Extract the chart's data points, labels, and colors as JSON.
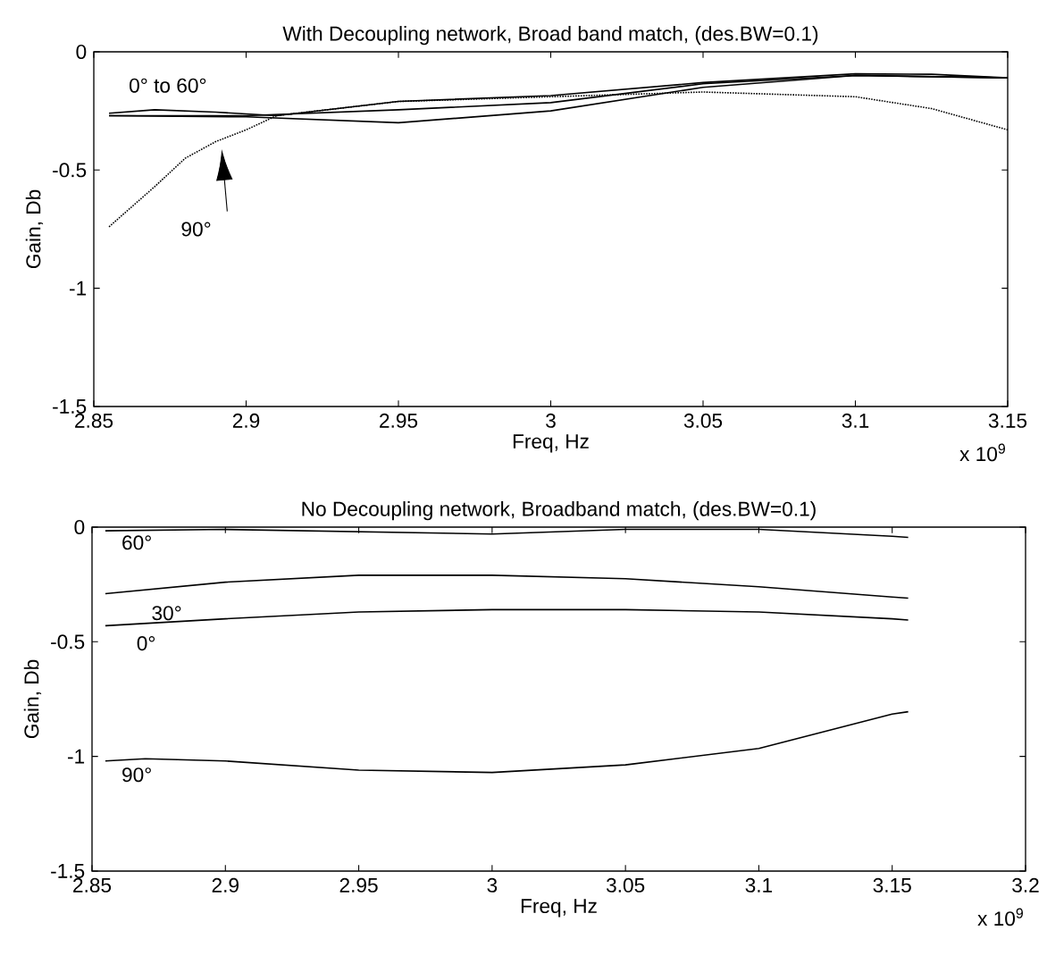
{
  "chart_data": [
    {
      "type": "line",
      "title": "With Decoupling network, Broad band match, (des.BW=0.1)",
      "xlabel": "Freq, Hz",
      "ylabel": "Gain, Db",
      "xlim": [
        2.85,
        3.15
      ],
      "xticks": [
        2.85,
        2.9,
        2.95,
        3,
        3.05,
        3.1,
        3.15
      ],
      "ylim": [
        -1.5,
        0
      ],
      "yticks": [
        -1.5,
        -1,
        -0.5,
        0
      ],
      "series": [
        {
          "color": "#000000",
          "line_style": "solid",
          "x": [
            2.855,
            2.87,
            2.89,
            2.91,
            2.95,
            3.0,
            3.05,
            3.1,
            3.125,
            3.15
          ],
          "values": [
            -0.26,
            -0.245,
            -0.255,
            -0.27,
            -0.21,
            -0.185,
            -0.13,
            -0.093,
            -0.095,
            -0.11
          ]
        },
        {
          "color": "#000000",
          "line_style": "solid",
          "x": [
            2.855,
            2.9,
            2.95,
            3.0,
            3.05,
            3.1,
            3.15
          ],
          "values": [
            -0.27,
            -0.275,
            -0.3,
            -0.25,
            -0.15,
            -0.1,
            -0.11
          ]
        },
        {
          "color": "#000000",
          "line_style": "solid",
          "x": [
            2.855,
            2.9,
            2.95,
            3.0,
            3.05,
            3.1,
            3.15
          ],
          "values": [
            -0.27,
            -0.27,
            -0.245,
            -0.215,
            -0.135,
            -0.1,
            -0.11
          ]
        },
        {
          "color": "#000000",
          "line_style": "dotted",
          "x": [
            2.855,
            2.87,
            2.88,
            2.89,
            2.9,
            2.91,
            2.95,
            3.0,
            3.05,
            3.1,
            3.125,
            3.15
          ],
          "values": [
            -0.74,
            -0.57,
            -0.45,
            -0.38,
            -0.33,
            -0.27,
            -0.21,
            -0.19,
            -0.17,
            -0.19,
            -0.24,
            -0.33
          ]
        }
      ],
      "annotations": [
        "0° to 60°",
        "90°",
        "x 10$^{9}$"
      ]
    },
    {
      "type": "line",
      "title": "No Decoupling network, Broadband match, (des.BW=0.1)",
      "xlabel": "Freq, Hz",
      "ylabel": "Gain, Db",
      "xlim": [
        2.85,
        3.2
      ],
      "xticks": [
        2.85,
        2.9,
        2.95,
        3,
        3.05,
        3.1,
        3.15,
        3.2
      ],
      "ylim": [
        -1.5,
        0
      ],
      "yticks": [
        -1.5,
        -1,
        -0.5,
        0
      ],
      "series": [
        {
          "color": "#000000",
          "x": [
            2.855,
            2.9,
            2.95,
            3.0,
            3.05,
            3.1,
            3.15,
            3.156
          ],
          "values": [
            -0.016,
            -0.01,
            -0.02,
            -0.03,
            -0.01,
            -0.01,
            -0.04,
            -0.045
          ]
        },
        {
          "color": "#000000",
          "x": [
            2.855,
            2.9,
            2.95,
            3.0,
            3.05,
            3.1,
            3.15,
            3.156
          ],
          "values": [
            -0.29,
            -0.24,
            -0.21,
            -0.21,
            -0.225,
            -0.26,
            -0.305,
            -0.31
          ]
        },
        {
          "color": "#000000",
          "x": [
            2.855,
            2.9,
            2.95,
            3.0,
            3.05,
            3.1,
            3.15,
            3.156
          ],
          "values": [
            -0.43,
            -0.4,
            -0.37,
            -0.36,
            -0.36,
            -0.37,
            -0.4,
            -0.405
          ]
        },
        {
          "color": "#000000",
          "x": [
            2.855,
            2.87,
            2.9,
            2.95,
            3.0,
            3.05,
            3.1,
            3.15,
            3.156
          ],
          "values": [
            -1.02,
            -1.01,
            -1.02,
            -1.06,
            -1.07,
            -1.037,
            -0.965,
            -0.815,
            -0.805
          ]
        }
      ],
      "annotations": [
        "60°",
        "30°",
        "0°",
        "90°",
        "x 10$^{9}$"
      ]
    }
  ]
}
